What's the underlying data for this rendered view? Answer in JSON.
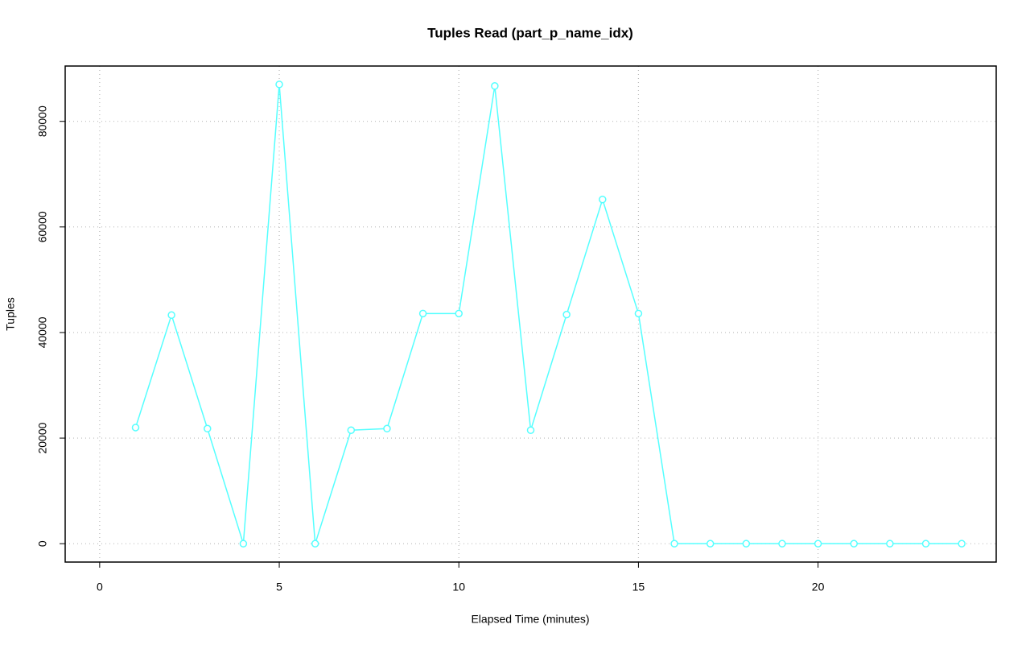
{
  "chart_data": {
    "type": "line",
    "title": "Tuples Read (part_p_name_idx)",
    "x_label": "Elapsed Time (minutes)",
    "y_label": "Tuples",
    "x": [
      1,
      2,
      3,
      4,
      5,
      6,
      7,
      8,
      9,
      10,
      11,
      12,
      13,
      14,
      15,
      16,
      17,
      18,
      19,
      20,
      21,
      22,
      23,
      24
    ],
    "series": [
      {
        "color": "#55ffff",
        "values": [
          22000,
          43300,
          21800,
          0,
          87000,
          0,
          21500,
          21800,
          43600,
          43600,
          86700,
          21500,
          43400,
          65200,
          43600,
          0,
          0,
          0,
          0,
          0,
          0,
          0,
          0,
          0
        ]
      }
    ],
    "xlim": [
      -0.96,
      24.96
    ],
    "ylim": [
      -3480,
      90480
    ],
    "xticks": [
      0,
      5,
      10,
      15,
      20
    ],
    "yticks": [
      0,
      20000,
      40000,
      60000,
      80000
    ],
    "grid": true
  }
}
